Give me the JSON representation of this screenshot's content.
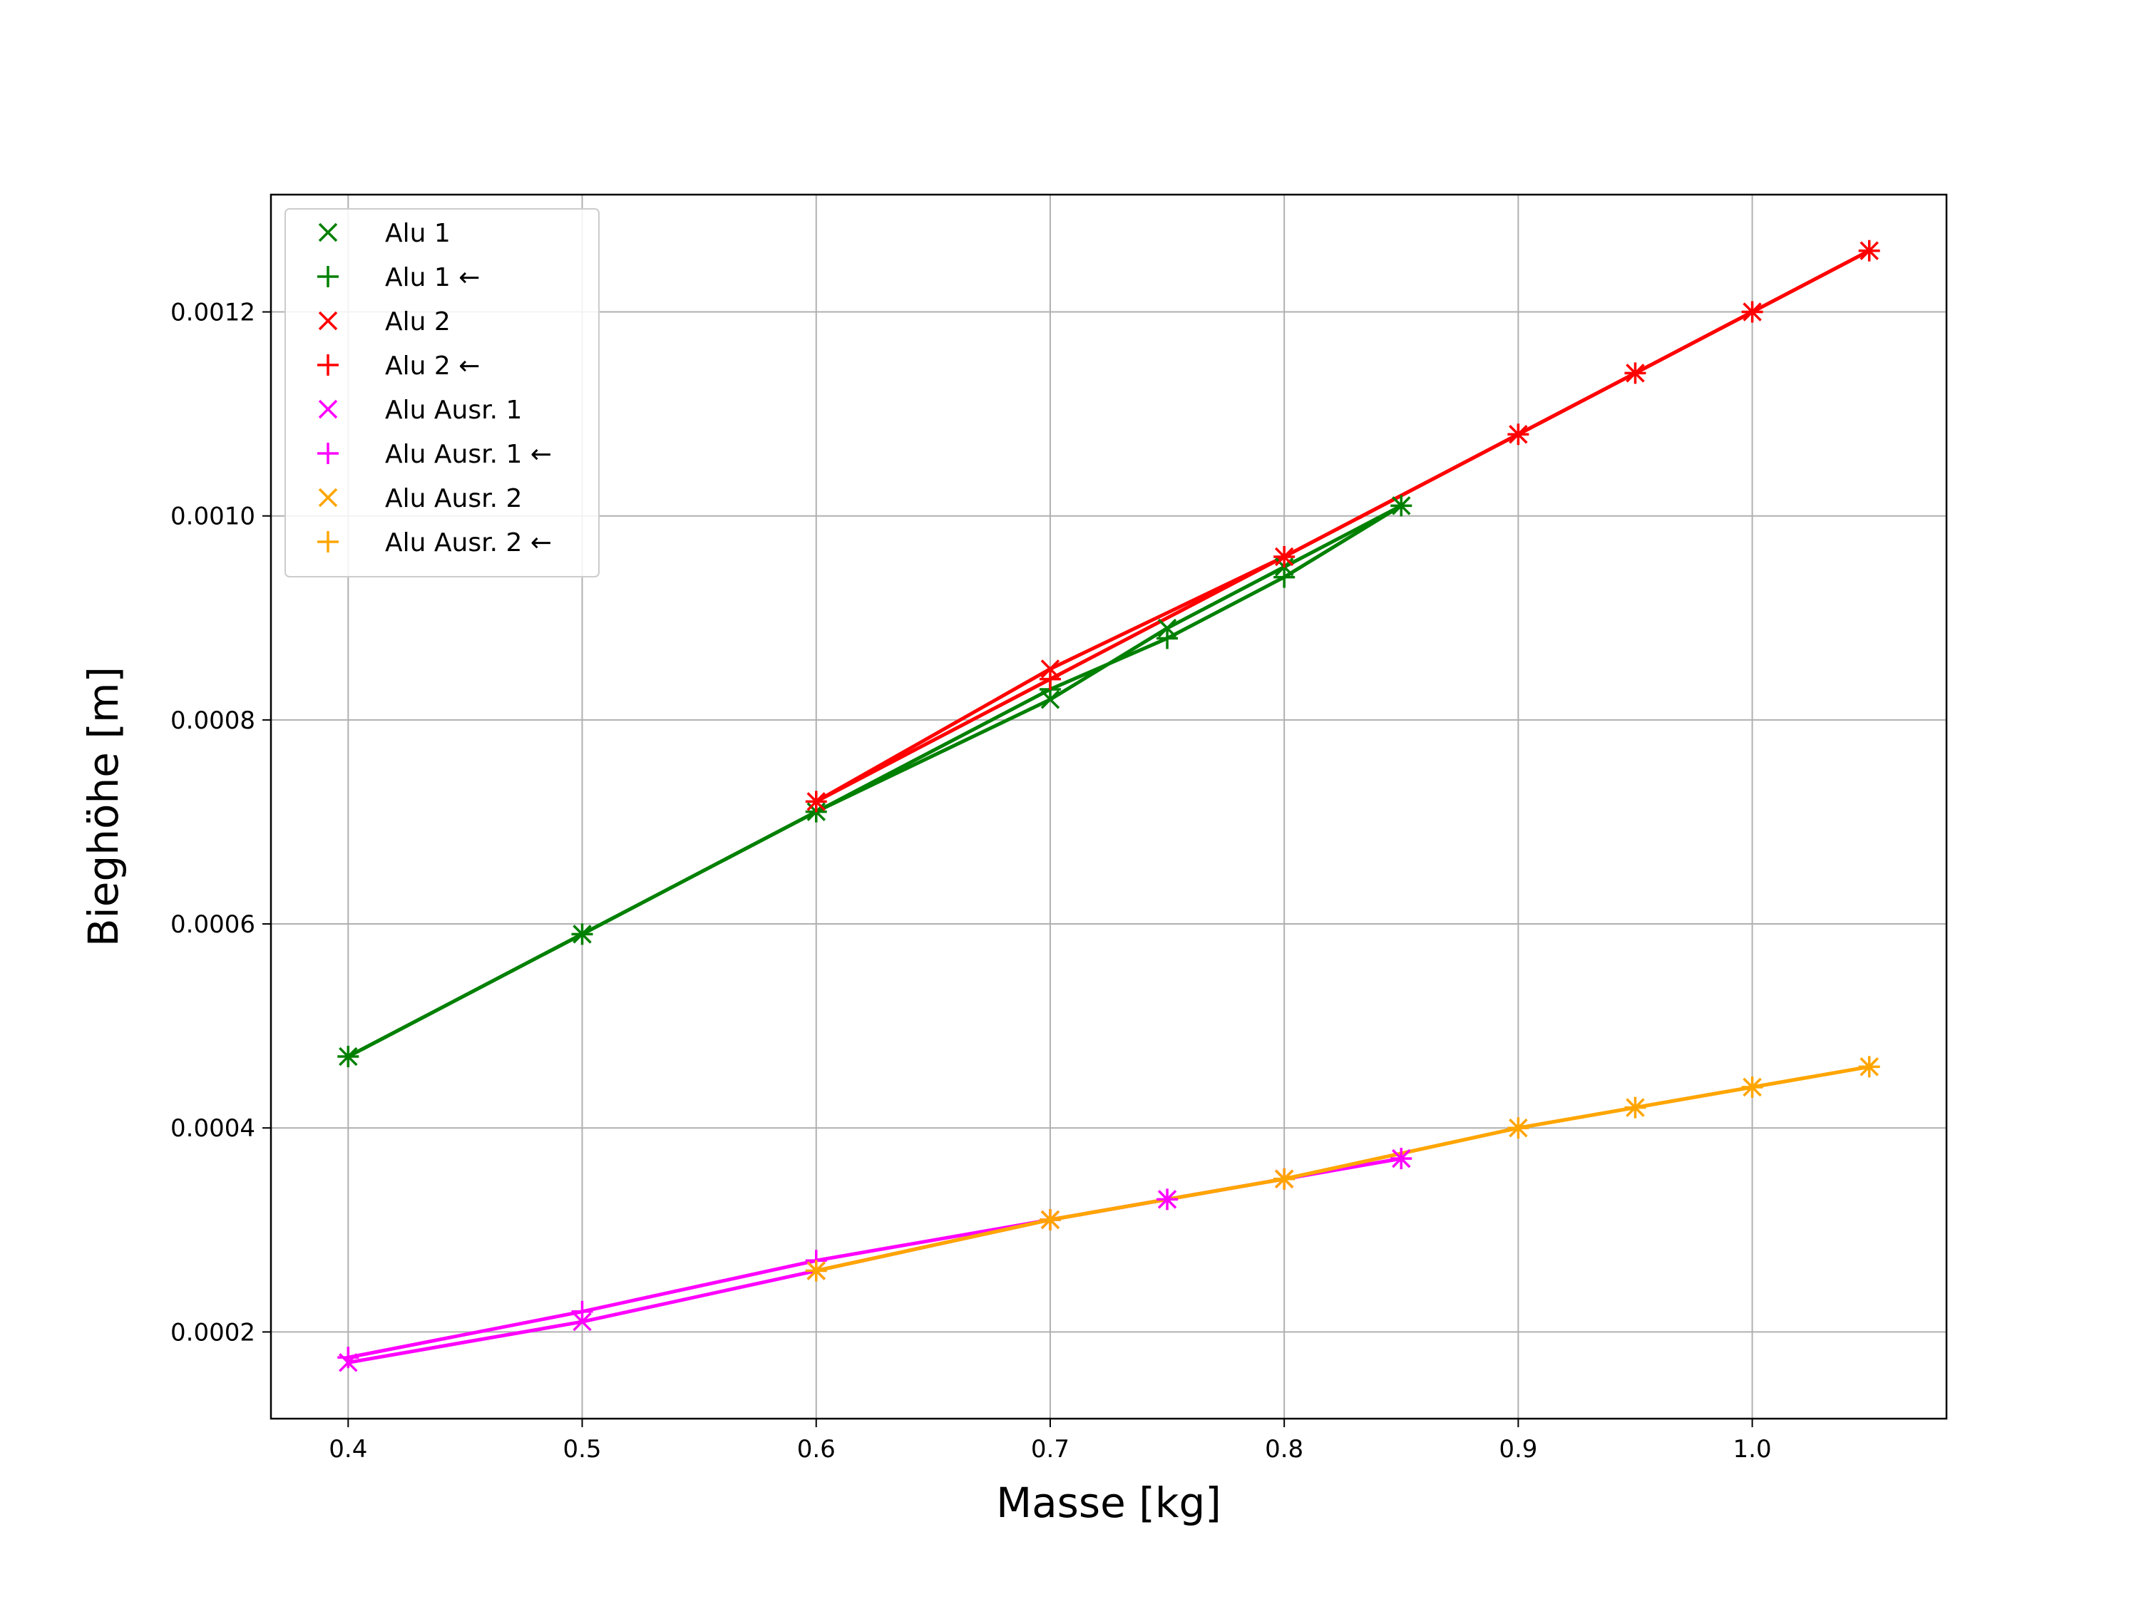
{
  "chart_data": {
    "type": "line",
    "title": "",
    "xlabel": "Masse [kg]",
    "ylabel": "Bieghöhe [m]",
    "xlim": [
      0.367,
      1.083
    ],
    "ylim": [
      0.000115,
      0.001315
    ],
    "grid": true,
    "legend_position": "top-left",
    "xticks": [
      "0.4",
      "0.5",
      "0.6",
      "0.7",
      "0.8",
      "0.9",
      "1.0"
    ],
    "yticks": [
      "0.0002",
      "0.0004",
      "0.0006",
      "0.0008",
      "0.0010",
      "0.0012"
    ],
    "series": [
      {
        "name": "Alu 1",
        "color": "#008000",
        "marker": "x",
        "x": [
          0.4,
          0.5,
          0.6,
          0.7,
          0.75,
          0.8,
          0.85
        ],
        "y": [
          0.00047,
          0.00059,
          0.00071,
          0.00082,
          0.00089,
          0.00095,
          0.00101
        ]
      },
      {
        "name": "Alu 1 ←",
        "color": "#008000",
        "marker": "+",
        "x": [
          0.85,
          0.8,
          0.75,
          0.7,
          0.6,
          0.5,
          0.4
        ],
        "y": [
          0.00101,
          0.00094,
          0.00088,
          0.00083,
          0.00071,
          0.00059,
          0.00047
        ]
      },
      {
        "name": "Alu 2",
        "color": "#ff0000",
        "marker": "x",
        "x": [
          0.6,
          0.7,
          0.8,
          0.9,
          0.95,
          1.0,
          1.05
        ],
        "y": [
          0.00072,
          0.00085,
          0.00096,
          0.00108,
          0.00114,
          0.0012,
          0.00126
        ]
      },
      {
        "name": "Alu 2 ←",
        "color": "#ff0000",
        "marker": "+",
        "x": [
          1.05,
          1.0,
          0.95,
          0.9,
          0.8,
          0.7,
          0.6
        ],
        "y": [
          0.00126,
          0.0012,
          0.00114,
          0.00108,
          0.00096,
          0.00084,
          0.00072
        ]
      },
      {
        "name": "Alu Ausr. 1",
        "color": "#ff00ff",
        "marker": "x",
        "x": [
          0.4,
          0.5,
          0.6,
          0.7,
          0.75,
          0.8,
          0.85
        ],
        "y": [
          0.00017,
          0.00021,
          0.00026,
          0.00031,
          0.00033,
          0.00035,
          0.00037
        ]
      },
      {
        "name": "Alu Ausr. 1 ←",
        "color": "#ff00ff",
        "marker": "+",
        "x": [
          0.85,
          0.8,
          0.75,
          0.7,
          0.6,
          0.5,
          0.4
        ],
        "y": [
          0.00037,
          0.00035,
          0.00033,
          0.00031,
          0.00027,
          0.00022,
          0.000175
        ]
      },
      {
        "name": "Alu Ausr. 2",
        "color": "#ffa500",
        "marker": "x",
        "x": [
          0.6,
          0.7,
          0.8,
          0.9,
          0.95,
          1.0,
          1.05
        ],
        "y": [
          0.00026,
          0.00031,
          0.00035,
          0.0004,
          0.00042,
          0.00044,
          0.00046
        ]
      },
      {
        "name": "Alu Ausr. 2 ←",
        "color": "#ffa500",
        "marker": "+",
        "x": [
          1.05,
          1.0,
          0.95,
          0.9,
          0.8,
          0.7,
          0.6
        ],
        "y": [
          0.00046,
          0.00044,
          0.00042,
          0.0004,
          0.00035,
          0.00031,
          0.00026
        ]
      }
    ]
  }
}
